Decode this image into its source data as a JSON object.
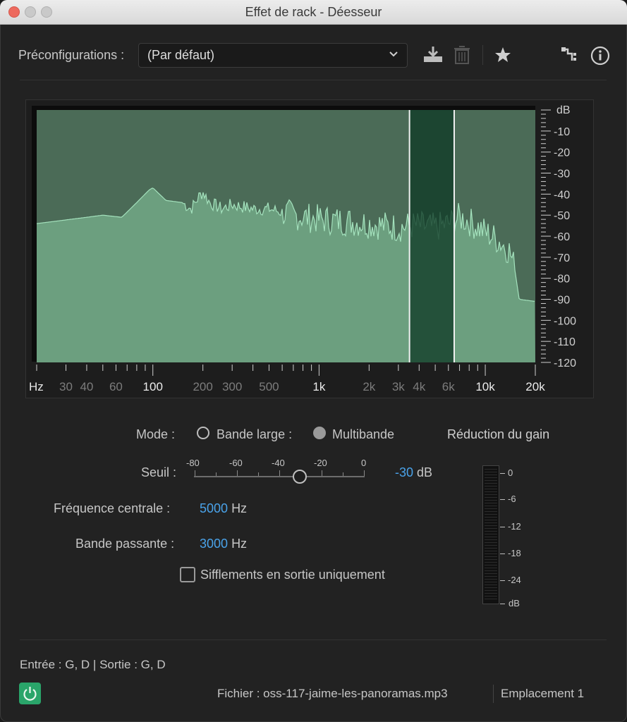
{
  "window": {
    "title": "Effet de rack - Déesseur"
  },
  "presets": {
    "label": "Préconfigurations :",
    "value": "(Par défaut)"
  },
  "toolbar": {
    "icons": [
      "download-preset-icon",
      "trash-icon",
      "star-icon",
      "routing-icon",
      "info-icon"
    ]
  },
  "graph": {
    "freq_axis": {
      "unit": "Hz",
      "labels": [
        "30",
        "40",
        "60",
        "100",
        "200",
        "300",
        "500",
        "1k",
        "2k",
        "3k",
        "4k",
        "6k",
        "10k",
        "20k"
      ]
    },
    "db_axis": {
      "unit": "dB",
      "labels": [
        "-10",
        "-20",
        "-30",
        "-40",
        "-50",
        "-60",
        "-70",
        "-80",
        "-90",
        "-100",
        "-110",
        "-120"
      ]
    },
    "band_selection": {
      "low_hz": 3500,
      "high_hz": 6500
    },
    "colors": {
      "spectrum_fill": "#6c9f7f",
      "spectrum_line": "#a4e2bd",
      "band": "#0f3b26"
    }
  },
  "controls": {
    "mode_label": "Mode :",
    "mode_options": [
      {
        "label": "Bande large :",
        "selected": true
      },
      {
        "label": "Multibande",
        "selected": false
      }
    ],
    "threshold": {
      "label": "Seuil :",
      "scale": [
        "-80",
        "-60",
        "-40",
        "-20",
        "0"
      ],
      "value": "-30",
      "unit": "dB"
    },
    "center_freq": {
      "label": "Fréquence centrale :",
      "value": "5000",
      "unit": "Hz"
    },
    "bandwidth": {
      "label": "Bande passante :",
      "value": "3000",
      "unit": "Hz"
    },
    "sibilance_only": {
      "label": "Sifflements en sortie uniquement",
      "checked": false
    }
  },
  "gain_reduction": {
    "title": "Réduction du gain",
    "scale": [
      "0",
      "-6",
      "-12",
      "-18",
      "-24",
      "dB"
    ]
  },
  "footer": {
    "io": "Entrée : G, D | Sortie : G, D",
    "file": "Fichier : oss-117-jaime-les-panoramas.mp3",
    "slot": "Emplacement 1",
    "power_color": "#2aa56a"
  }
}
